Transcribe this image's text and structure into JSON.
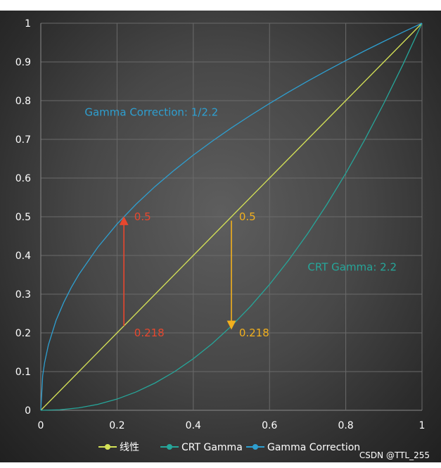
{
  "chart_data": {
    "type": "line",
    "xlim": [
      0,
      1
    ],
    "ylim": [
      0,
      1
    ],
    "x_ticks": [
      "0",
      "0.2",
      "0.4",
      "0.6",
      "0.8",
      "1"
    ],
    "y_ticks": [
      "0",
      "0.1",
      "0.2",
      "0.3",
      "0.4",
      "0.5",
      "0.6",
      "0.7",
      "0.8",
      "0.9",
      "1"
    ],
    "grid": true,
    "legend_position": "bottom",
    "series": [
      {
        "name": "线性",
        "color": "#d4e157",
        "values": [
          [
            0,
            0
          ],
          [
            0.1,
            0.1
          ],
          [
            0.2,
            0.2
          ],
          [
            0.3,
            0.3
          ],
          [
            0.4,
            0.4
          ],
          [
            0.5,
            0.5
          ],
          [
            0.6,
            0.6
          ],
          [
            0.7,
            0.7
          ],
          [
            0.8,
            0.8
          ],
          [
            0.9,
            0.9
          ],
          [
            1,
            1
          ]
        ]
      },
      {
        "name": "CRT Gamma",
        "color": "#26a69a",
        "values": [
          [
            0,
            0
          ],
          [
            0.05,
            0.0014
          ],
          [
            0.1,
            0.0063
          ],
          [
            0.15,
            0.0154
          ],
          [
            0.2,
            0.029
          ],
          [
            0.25,
            0.0474
          ],
          [
            0.3,
            0.0707
          ],
          [
            0.35,
            0.0993
          ],
          [
            0.4,
            0.1332
          ],
          [
            0.45,
            0.1725
          ],
          [
            0.5,
            0.2176
          ],
          [
            0.55,
            0.2683
          ],
          [
            0.6,
            0.325
          ],
          [
            0.65,
            0.3877
          ],
          [
            0.7,
            0.4563
          ],
          [
            0.75,
            0.5311
          ],
          [
            0.8,
            0.6121
          ],
          [
            0.85,
            0.6994
          ],
          [
            0.9,
            0.7932
          ],
          [
            0.95,
            0.8933
          ],
          [
            1,
            1
          ]
        ]
      },
      {
        "name": "Gamma Correction",
        "color": "#2e9fd0",
        "values": [
          [
            0,
            0
          ],
          [
            0.005,
            0.0899
          ],
          [
            0.01,
            0.1233
          ],
          [
            0.02,
            0.1692
          ],
          [
            0.04,
            0.232
          ],
          [
            0.06,
            0.2783
          ],
          [
            0.08,
            0.3174
          ],
          [
            0.1,
            0.3511
          ],
          [
            0.15,
            0.4218
          ],
          [
            0.2,
            0.4812
          ],
          [
            0.25,
            0.5325
          ],
          [
            0.3,
            0.5785
          ],
          [
            0.35,
            0.6201
          ],
          [
            0.4,
            0.6593
          ],
          [
            0.45,
            0.6955
          ],
          [
            0.5,
            0.7297
          ],
          [
            0.55,
            0.7618
          ],
          [
            0.6,
            0.7927
          ],
          [
            0.65,
            0.8222
          ],
          [
            0.7,
            0.8503
          ],
          [
            0.75,
            0.8774
          ],
          [
            0.8,
            0.9036
          ],
          [
            0.85,
            0.9289
          ],
          [
            0.9,
            0.9532
          ],
          [
            0.95,
            0.977
          ],
          [
            1,
            1
          ]
        ]
      }
    ],
    "annotations": [
      {
        "text": "Gamma Correction: 1/2.2",
        "x": 0.115,
        "y": 0.77,
        "color": "#2e9fd0"
      },
      {
        "text": "CRT Gamma: 2.2",
        "x": 0.7,
        "y": 0.37,
        "color": "#26a69a"
      },
      {
        "text": "0.5",
        "x": 0.245,
        "y": 0.5,
        "color": "#e8472e"
      },
      {
        "text": "0.218",
        "x": 0.245,
        "y": 0.2,
        "color": "#e8472e"
      },
      {
        "text": "0.5",
        "x": 0.52,
        "y": 0.5,
        "color": "#f2b01e"
      },
      {
        "text": "0.218",
        "x": 0.52,
        "y": 0.2,
        "color": "#f2b01e"
      }
    ],
    "arrows": [
      {
        "x": 0.218,
        "from": 0.218,
        "to": 0.49,
        "color": "#e8472e"
      },
      {
        "x": 0.5,
        "from": 0.49,
        "to": 0.22,
        "color": "#f2b01e"
      }
    ]
  },
  "watermark": "CSDN @TTL_255"
}
